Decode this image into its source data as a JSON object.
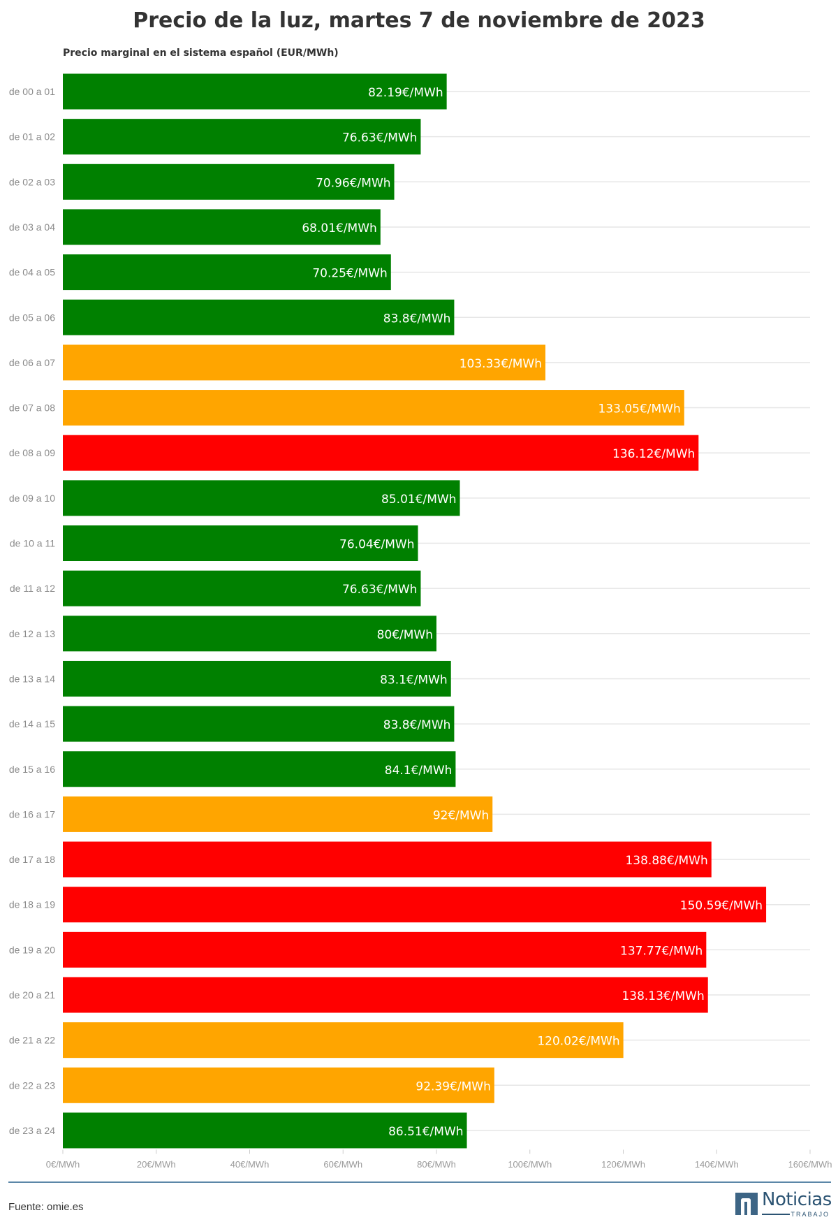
{
  "header": {
    "title": "Precio de la luz, martes 7 de noviembre de 2023",
    "subtitle": "Precio marginal en el sistema español (EUR/MWh)"
  },
  "footer": {
    "source": "Fuente: omie.es",
    "logo_name": "Noticias",
    "logo_sub": "TRABAJO",
    "brand_color": "#2c5473"
  },
  "chart_data": {
    "type": "bar",
    "orientation": "horizontal",
    "title": "Precio de la luz, martes 7 de noviembre de 2023",
    "subtitle": "Precio marginal en el sistema español (EUR/MWh)",
    "categories": [
      "de 00 a 01",
      "de 01 a 02",
      "de 02 a 03",
      "de 03 a 04",
      "de 04 a 05",
      "de 05 a 06",
      "de 06 a 07",
      "de 07 a 08",
      "de 08 a 09",
      "de 09 a 10",
      "de 10 a 11",
      "de 11 a 12",
      "de 12 a 13",
      "de 13 a 14",
      "de 14 a 15",
      "de 15 a 16",
      "de 16 a 17",
      "de 17 a 18",
      "de 18 a 19",
      "de 19 a 20",
      "de 20 a 21",
      "de 21 a 22",
      "de 22 a 23",
      "de 23 a 24"
    ],
    "values": [
      82.19,
      76.63,
      70.96,
      68.01,
      70.25,
      83.8,
      103.33,
      133.05,
      136.12,
      85.01,
      76.04,
      76.63,
      80,
      83.1,
      83.8,
      84.1,
      92,
      138.88,
      150.59,
      137.77,
      138.13,
      120.02,
      92.39,
      86.51
    ],
    "value_labels": [
      "82.19€/MWh",
      "76.63€/MWh",
      "70.96€/MWh",
      "68.01€/MWh",
      "70.25€/MWh",
      "83.8€/MWh",
      "103.33€/MWh",
      "133.05€/MWh",
      "136.12€/MWh",
      "85.01€/MWh",
      "76.04€/MWh",
      "76.63€/MWh",
      "80€/MWh",
      "83.1€/MWh",
      "83.8€/MWh",
      "84.1€/MWh",
      "92€/MWh",
      "138.88€/MWh",
      "150.59€/MWh",
      "137.77€/MWh",
      "138.13€/MWh",
      "120.02€/MWh",
      "92.39€/MWh",
      "86.51€/MWh"
    ],
    "bar_colors": [
      "#008000",
      "#008000",
      "#008000",
      "#008000",
      "#008000",
      "#008000",
      "#ffa500",
      "#ffa500",
      "#ff0000",
      "#008000",
      "#008000",
      "#008000",
      "#008000",
      "#008000",
      "#008000",
      "#008000",
      "#ffa500",
      "#ff0000",
      "#ff0000",
      "#ff0000",
      "#ff0000",
      "#ffa500",
      "#ffa500",
      "#008000"
    ],
    "colors": {
      "low": "#008000",
      "medium": "#ffa500",
      "high": "#ff0000"
    },
    "xlim": [
      0,
      160
    ],
    "xticks": [
      0,
      20,
      40,
      60,
      80,
      100,
      120,
      140,
      160
    ],
    "xtick_labels": [
      "0€/MWh",
      "20€/MWh",
      "40€/MWh",
      "60€/MWh",
      "80€/MWh",
      "100€/MWh",
      "120€/MWh",
      "140€/MWh",
      "160€/MWh"
    ],
    "grid": true,
    "legend": "none"
  }
}
